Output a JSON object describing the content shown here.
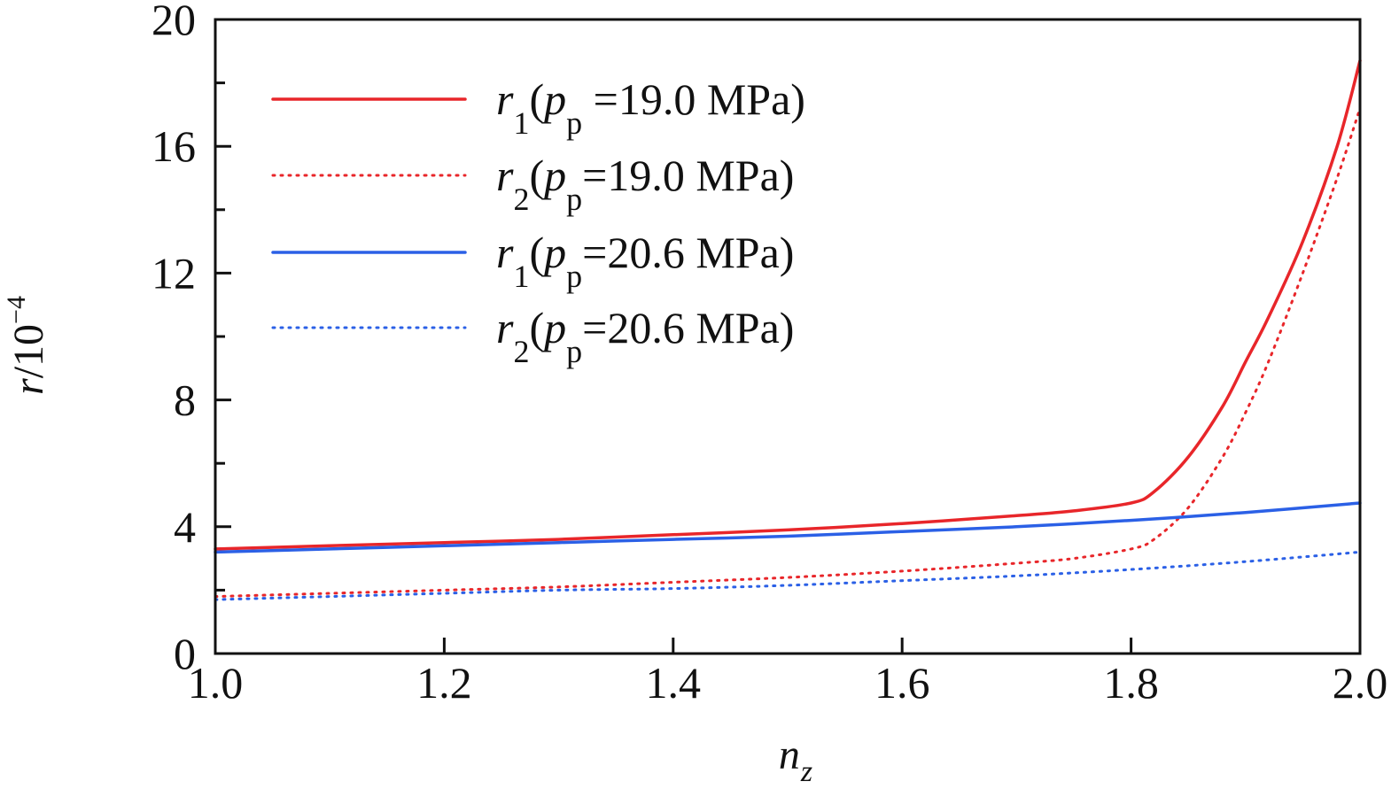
{
  "chart_data": {
    "type": "line",
    "title": "",
    "xlabel": {
      "base": "n",
      "sub": "z"
    },
    "ylabel": {
      "base": "r",
      "rest": "/10",
      "sup": "−4"
    },
    "xlim": [
      1.0,
      2.0
    ],
    "ylim": [
      0,
      20
    ],
    "xticks": [
      1.0,
      1.2,
      1.4,
      1.6,
      1.8,
      2.0
    ],
    "xtick_labels": [
      "1.0",
      "1.2",
      "1.4",
      "1.6",
      "1.8",
      "2.0"
    ],
    "yticks": [
      0,
      4,
      8,
      12,
      16,
      20
    ],
    "ytick_labels": [
      "0",
      "4",
      "8",
      "12",
      "16",
      "20"
    ],
    "legend_position": "top-left",
    "series": [
      {
        "name": "r1(pp =19.0 MPa)",
        "label": {
          "var": "r",
          "sub": "1",
          "open": "(",
          "p": "p",
          "psub": "p",
          "rest": " =19.0 MPa)"
        },
        "color": "#e8262a",
        "dash": "solid",
        "x": [
          1.0,
          1.1,
          1.2,
          1.3,
          1.4,
          1.5,
          1.6,
          1.7,
          1.75,
          1.8,
          1.82,
          1.85,
          1.88,
          1.9,
          1.92,
          1.95,
          1.98,
          2.0
        ],
        "y": [
          3.3,
          3.4,
          3.5,
          3.6,
          3.75,
          3.9,
          4.1,
          4.35,
          4.5,
          4.75,
          5.1,
          6.2,
          7.8,
          9.2,
          10.6,
          13.0,
          16.0,
          18.7
        ]
      },
      {
        "name": "r2(pp=19.0 MPa)",
        "label": {
          "var": "r",
          "sub": "2",
          "open": "(",
          "p": "p",
          "psub": "p",
          "rest": "=19.0 MPa)"
        },
        "color": "#e8262a",
        "dash": "dotted",
        "x": [
          1.0,
          1.1,
          1.2,
          1.3,
          1.4,
          1.5,
          1.6,
          1.7,
          1.75,
          1.8,
          1.82,
          1.85,
          1.88,
          1.9,
          1.92,
          1.95,
          1.98,
          2.0
        ],
        "y": [
          1.8,
          1.9,
          2.0,
          2.1,
          2.25,
          2.4,
          2.6,
          2.85,
          3.0,
          3.3,
          3.6,
          4.6,
          6.2,
          7.6,
          9.2,
          12.0,
          15.0,
          17.2
        ]
      },
      {
        "name": "r1(pp=20.6 MPa)",
        "label": {
          "var": "r",
          "sub": "1",
          "open": "(",
          "p": "p",
          "psub": "p",
          "rest": "=20.6 MPa)"
        },
        "color": "#2b60e6",
        "dash": "solid",
        "x": [
          1.0,
          1.1,
          1.2,
          1.3,
          1.4,
          1.5,
          1.6,
          1.7,
          1.8,
          1.9,
          2.0
        ],
        "y": [
          3.2,
          3.3,
          3.4,
          3.5,
          3.6,
          3.7,
          3.85,
          4.0,
          4.2,
          4.45,
          4.75
        ]
      },
      {
        "name": "r2(pp=20.6 MPa)",
        "label": {
          "var": "r",
          "sub": "2",
          "open": "(",
          "p": "p",
          "psub": "p",
          "rest": "=20.6 MPa)"
        },
        "color": "#2b60e6",
        "dash": "dotted",
        "x": [
          1.0,
          1.1,
          1.2,
          1.3,
          1.4,
          1.5,
          1.6,
          1.7,
          1.8,
          1.9,
          2.0
        ],
        "y": [
          1.7,
          1.8,
          1.9,
          2.0,
          2.05,
          2.15,
          2.3,
          2.45,
          2.65,
          2.9,
          3.2
        ]
      }
    ]
  }
}
